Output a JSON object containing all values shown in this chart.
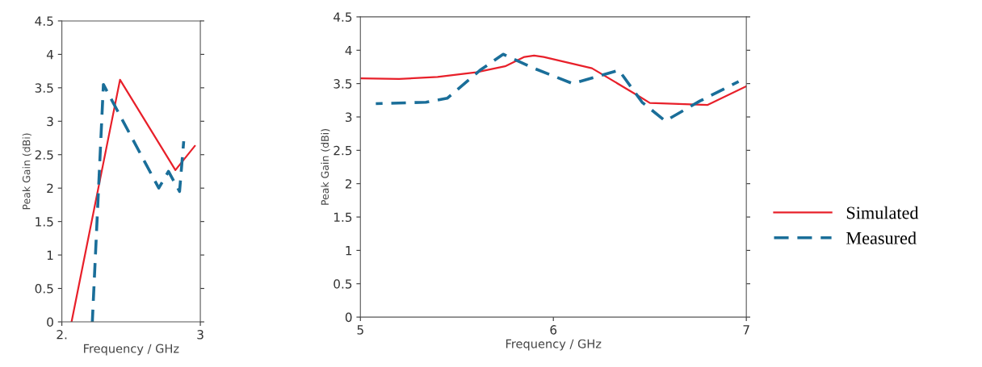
{
  "chart_data": [
    {
      "type": "line",
      "xlabel": "Frequency / GHz",
      "ylabel": "Peak Gain (dBi)",
      "xlim": [
        2,
        3
      ],
      "xticks": [
        {
          "value": 2,
          "label": "2."
        },
        3
      ],
      "ylim": [
        0,
        4.5
      ],
      "yticks": [
        0,
        0.5,
        1,
        1.5,
        2,
        2.5,
        3,
        3.5,
        4,
        4.5
      ],
      "grid": false,
      "legend": false,
      "series": [
        {
          "color": "#e8202a",
          "line_style": "solid",
          "x": [
            2.07,
            2.42,
            2.82,
            2.96
          ],
          "values": [
            0,
            3.62,
            2.27,
            2.63
          ]
        },
        {
          "color": "#1a6e99",
          "line_style": "dashed",
          "x": [
            2.22,
            2.3,
            2.7,
            2.77,
            2.85,
            2.88
          ],
          "values": [
            0,
            3.55,
            2.0,
            2.25,
            1.95,
            2.7
          ]
        }
      ]
    },
    {
      "type": "line",
      "xlabel": "Frequency / GHz",
      "ylabel": "Peak Gain (dBi)",
      "xlim": [
        5,
        7
      ],
      "xticks": [
        5,
        6,
        7
      ],
      "ylim": [
        0,
        4.5
      ],
      "yticks": [
        0,
        0.5,
        1,
        1.5,
        2,
        2.5,
        3,
        3.5,
        4,
        4.5
      ],
      "grid": false,
      "legend": "right",
      "series": [
        {
          "name": "Simulated",
          "color": "#e8202a",
          "line_style": "solid",
          "x": [
            5.0,
            5.2,
            5.4,
            5.6,
            5.75,
            5.85,
            5.9,
            5.95,
            6.2,
            6.45,
            6.5,
            6.8,
            7.0
          ],
          "values": [
            3.58,
            3.57,
            3.6,
            3.67,
            3.76,
            3.9,
            3.92,
            3.9,
            3.73,
            3.3,
            3.21,
            3.18,
            3.46
          ]
        },
        {
          "name": "Measured",
          "color": "#1a6e99",
          "line_style": "dashed",
          "x": [
            5.08,
            5.34,
            5.45,
            5.62,
            5.74,
            5.89,
            6.1,
            6.34,
            6.46,
            6.58,
            6.76,
            6.96
          ],
          "values": [
            3.2,
            3.22,
            3.28,
            3.7,
            3.94,
            3.74,
            3.5,
            3.7,
            3.22,
            2.94,
            3.24,
            3.53
          ]
        }
      ]
    }
  ]
}
